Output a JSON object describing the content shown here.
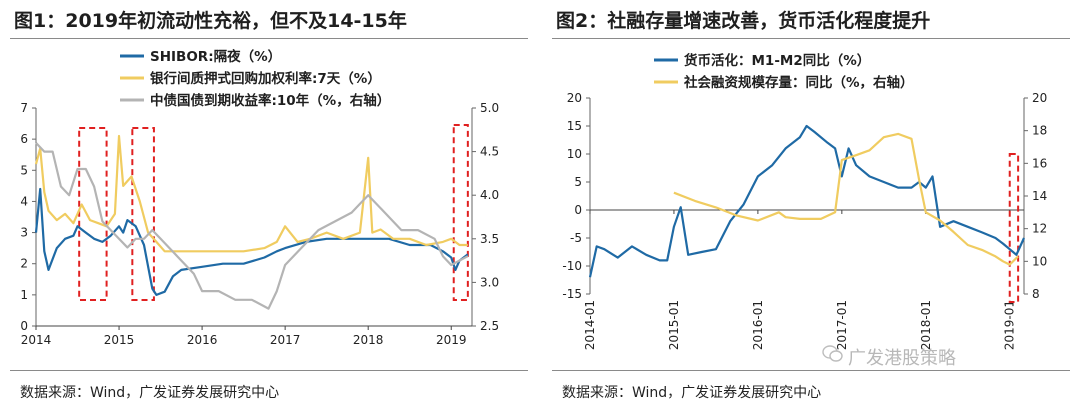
{
  "panel1": {
    "title": "图1：2019年初流动性充裕，但不及14-15年",
    "source": "数据来源：Wind，广发证券发展研究中心"
  },
  "panel2": {
    "title": "图2：社融存量增速改善，货币活化程度提升",
    "source": "数据来源：Wind，广发证券发展研究中心"
  },
  "watermark": "广发港股策略",
  "colors": {
    "blue": "#1f6aa5",
    "yellow": "#f0cc60",
    "gray": "#b4b4b4",
    "red": "#e02020"
  },
  "chart_data": [
    {
      "type": "line",
      "x_ticks": [
        "2014",
        "2015",
        "2016",
        "2017",
        "2018",
        "2019"
      ],
      "xlim": [
        2014,
        2019.25
      ],
      "y_left": {
        "lim": [
          0,
          7
        ],
        "ticks": [
          "0",
          "1",
          "2",
          "3",
          "4",
          "5",
          "6",
          "7"
        ]
      },
      "y_right": {
        "lim": [
          2.5,
          5.0
        ],
        "ticks": [
          "2.5",
          "3.0",
          "3.5",
          "4.0",
          "4.5",
          "5.0"
        ]
      },
      "series": [
        {
          "name": "SHIBOR:隔夜（%）",
          "color": "#1f6aa5",
          "axis": "left",
          "points": [
            [
              2014.0,
              3.0
            ],
            [
              2014.05,
              4.4
            ],
            [
              2014.1,
              2.4
            ],
            [
              2014.15,
              1.8
            ],
            [
              2014.25,
              2.5
            ],
            [
              2014.35,
              2.8
            ],
            [
              2014.45,
              2.9
            ],
            [
              2014.5,
              3.2
            ],
            [
              2014.6,
              3.0
            ],
            [
              2014.7,
              2.8
            ],
            [
              2014.8,
              2.7
            ],
            [
              2014.9,
              2.9
            ],
            [
              2015.0,
              3.2
            ],
            [
              2015.05,
              3.0
            ],
            [
              2015.1,
              3.4
            ],
            [
              2015.2,
              3.2
            ],
            [
              2015.3,
              2.6
            ],
            [
              2015.4,
              1.2
            ],
            [
              2015.45,
              1.0
            ],
            [
              2015.55,
              1.1
            ],
            [
              2015.65,
              1.6
            ],
            [
              2015.75,
              1.8
            ],
            [
              2016.0,
              1.9
            ],
            [
              2016.25,
              2.0
            ],
            [
              2016.5,
              2.0
            ],
            [
              2016.75,
              2.2
            ],
            [
              2016.9,
              2.4
            ],
            [
              2017.0,
              2.5
            ],
            [
              2017.25,
              2.7
            ],
            [
              2017.5,
              2.8
            ],
            [
              2017.75,
              2.8
            ],
            [
              2018.0,
              2.8
            ],
            [
              2018.25,
              2.8
            ],
            [
              2018.5,
              2.6
            ],
            [
              2018.75,
              2.6
            ],
            [
              2018.9,
              2.4
            ],
            [
              2019.0,
              2.2
            ],
            [
              2019.05,
              1.8
            ],
            [
              2019.1,
              2.1
            ],
            [
              2019.2,
              2.3
            ]
          ]
        },
        {
          "name": "银行间质押式回购加权利率:7天（%）",
          "color": "#f0cc60",
          "axis": "left",
          "points": [
            [
              2014.0,
              5.2
            ],
            [
              2014.05,
              5.7
            ],
            [
              2014.1,
              4.3
            ],
            [
              2014.15,
              3.7
            ],
            [
              2014.25,
              3.4
            ],
            [
              2014.35,
              3.6
            ],
            [
              2014.45,
              3.3
            ],
            [
              2014.55,
              3.9
            ],
            [
              2014.65,
              3.4
            ],
            [
              2014.75,
              3.3
            ],
            [
              2014.85,
              3.2
            ],
            [
              2014.95,
              3.6
            ],
            [
              2015.0,
              6.1
            ],
            [
              2015.05,
              4.5
            ],
            [
              2015.15,
              4.8
            ],
            [
              2015.25,
              4.0
            ],
            [
              2015.35,
              3.0
            ],
            [
              2015.45,
              2.7
            ],
            [
              2015.55,
              2.4
            ],
            [
              2015.75,
              2.4
            ],
            [
              2016.0,
              2.4
            ],
            [
              2016.25,
              2.4
            ],
            [
              2016.5,
              2.4
            ],
            [
              2016.75,
              2.5
            ],
            [
              2016.9,
              2.7
            ],
            [
              2017.0,
              3.2
            ],
            [
              2017.15,
              2.7
            ],
            [
              2017.3,
              2.8
            ],
            [
              2017.5,
              3.0
            ],
            [
              2017.7,
              2.8
            ],
            [
              2017.9,
              3.0
            ],
            [
              2018.0,
              5.4
            ],
            [
              2018.05,
              3.0
            ],
            [
              2018.15,
              3.1
            ],
            [
              2018.3,
              2.8
            ],
            [
              2018.5,
              2.8
            ],
            [
              2018.7,
              2.6
            ],
            [
              2018.9,
              2.7
            ],
            [
              2019.0,
              2.8
            ],
            [
              2019.1,
              2.6
            ],
            [
              2019.2,
              2.6
            ]
          ]
        },
        {
          "name": "中债国债到期收益率:10年（%，右轴）",
          "color": "#b4b4b4",
          "axis": "right",
          "points": [
            [
              2014.0,
              4.6
            ],
            [
              2014.1,
              4.5
            ],
            [
              2014.2,
              4.5
            ],
            [
              2014.3,
              4.1
            ],
            [
              2014.4,
              4.0
            ],
            [
              2014.5,
              4.3
            ],
            [
              2014.6,
              4.3
            ],
            [
              2014.7,
              4.1
            ],
            [
              2014.8,
              3.7
            ],
            [
              2014.9,
              3.6
            ],
            [
              2015.0,
              3.5
            ],
            [
              2015.1,
              3.4
            ],
            [
              2015.2,
              3.5
            ],
            [
              2015.3,
              3.5
            ],
            [
              2015.4,
              3.6
            ],
            [
              2015.5,
              3.5
            ],
            [
              2015.6,
              3.4
            ],
            [
              2015.7,
              3.3
            ],
            [
              2015.8,
              3.2
            ],
            [
              2015.9,
              3.1
            ],
            [
              2016.0,
              2.9
            ],
            [
              2016.2,
              2.9
            ],
            [
              2016.4,
              2.8
            ],
            [
              2016.6,
              2.8
            ],
            [
              2016.8,
              2.7
            ],
            [
              2016.9,
              2.9
            ],
            [
              2017.0,
              3.2
            ],
            [
              2017.2,
              3.4
            ],
            [
              2017.4,
              3.6
            ],
            [
              2017.6,
              3.7
            ],
            [
              2017.8,
              3.8
            ],
            [
              2017.9,
              3.9
            ],
            [
              2018.0,
              4.0
            ],
            [
              2018.2,
              3.8
            ],
            [
              2018.4,
              3.6
            ],
            [
              2018.6,
              3.6
            ],
            [
              2018.8,
              3.5
            ],
            [
              2018.9,
              3.3
            ],
            [
              2019.0,
              3.2
            ],
            [
              2019.2,
              3.3
            ]
          ]
        }
      ]
    },
    {
      "type": "line",
      "x_ticks": [
        "2014-01",
        "2015-01",
        "2016-01",
        "2017-01",
        "2018-01",
        "2019-01"
      ],
      "xlim": [
        2014.0,
        2019.17
      ],
      "y_left": {
        "lim": [
          -15,
          20
        ],
        "ticks": [
          "-15",
          "-10",
          "-5",
          "0",
          "5",
          "10",
          "15",
          "20"
        ]
      },
      "y_right": {
        "lim": [
          8,
          20
        ],
        "ticks": [
          "8",
          "10",
          "12",
          "14",
          "16",
          "18",
          "20"
        ]
      },
      "series": [
        {
          "name": "货币活化：M1-M2同比（%）",
          "color": "#1f6aa5",
          "axis": "left",
          "points": [
            [
              2014.0,
              -12
            ],
            [
              2014.08,
              -6.5
            ],
            [
              2014.17,
              -7
            ],
            [
              2014.33,
              -8.5
            ],
            [
              2014.5,
              -6.5
            ],
            [
              2014.67,
              -8
            ],
            [
              2014.83,
              -9
            ],
            [
              2014.92,
              -9
            ],
            [
              2015.0,
              -3
            ],
            [
              2015.08,
              0.5
            ],
            [
              2015.17,
              -8
            ],
            [
              2015.33,
              -7.5
            ],
            [
              2015.5,
              -7
            ],
            [
              2015.67,
              -2
            ],
            [
              2015.83,
              1
            ],
            [
              2016.0,
              6
            ],
            [
              2016.17,
              8
            ],
            [
              2016.33,
              11
            ],
            [
              2016.5,
              13
            ],
            [
              2016.58,
              15
            ],
            [
              2016.67,
              14
            ],
            [
              2016.83,
              12
            ],
            [
              2016.92,
              11
            ],
            [
              2017.0,
              6
            ],
            [
              2017.08,
              11
            ],
            [
              2017.17,
              8
            ],
            [
              2017.33,
              6
            ],
            [
              2017.5,
              5
            ],
            [
              2017.67,
              4
            ],
            [
              2017.83,
              4
            ],
            [
              2017.92,
              5
            ],
            [
              2018.0,
              4
            ],
            [
              2018.08,
              6
            ],
            [
              2018.17,
              -3
            ],
            [
              2018.33,
              -2
            ],
            [
              2018.5,
              -3
            ],
            [
              2018.67,
              -4
            ],
            [
              2018.83,
              -5
            ],
            [
              2018.92,
              -6
            ],
            [
              2019.0,
              -7
            ],
            [
              2019.08,
              -8
            ],
            [
              2019.17,
              -5
            ]
          ]
        },
        {
          "name": "社会融资规模存量：同比（%，右轴）",
          "color": "#f0cc60",
          "axis": "right",
          "points": [
            [
              2015.0,
              14.2
            ],
            [
              2015.25,
              13.7
            ],
            [
              2015.5,
              13.3
            ],
            [
              2015.75,
              12.8
            ],
            [
              2016.0,
              12.5
            ],
            [
              2016.25,
              13.0
            ],
            [
              2016.33,
              12.7
            ],
            [
              2016.5,
              12.6
            ],
            [
              2016.75,
              12.6
            ],
            [
              2016.92,
              13.0
            ],
            [
              2017.0,
              16.2
            ],
            [
              2017.17,
              16.5
            ],
            [
              2017.33,
              16.8
            ],
            [
              2017.5,
              17.6
            ],
            [
              2017.67,
              17.8
            ],
            [
              2017.83,
              17.5
            ],
            [
              2017.92,
              15.0
            ],
            [
              2018.0,
              13.0
            ],
            [
              2018.17,
              12.5
            ],
            [
              2018.33,
              11.8
            ],
            [
              2018.5,
              11.0
            ],
            [
              2018.67,
              10.7
            ],
            [
              2018.83,
              10.3
            ],
            [
              2018.92,
              10.0
            ],
            [
              2019.0,
              9.8
            ],
            [
              2019.1,
              10.3
            ]
          ]
        }
      ]
    }
  ]
}
